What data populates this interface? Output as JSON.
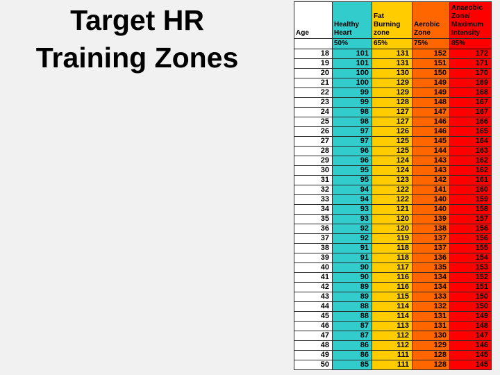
{
  "slide": {
    "title": {
      "line1": "Target HR",
      "line2": "Training Zones"
    },
    "background_color": "#F1F1F2"
  },
  "table": {
    "columns": [
      {
        "key": "age",
        "label": "Age",
        "pct": "",
        "color": "#FFFFFF"
      },
      {
        "key": "healthy",
        "label": "Healthy\nHeart",
        "pct": "50%",
        "color": "#33CCCC"
      },
      {
        "key": "fat",
        "label": "Fat\nBurning\nzone",
        "pct": "65%",
        "color": "#FFCC00"
      },
      {
        "key": "aerobic",
        "label": "Aerobic\nZone",
        "pct": "75%",
        "color": "#FF6600"
      },
      {
        "key": "anaerobic",
        "label": "Anaeobic\nZone/\nMaximum\nIntensity",
        "pct": "85%",
        "color": "#FF0000"
      }
    ],
    "rows": [
      [
        18,
        101,
        131,
        152,
        172
      ],
      [
        19,
        101,
        131,
        151,
        171
      ],
      [
        20,
        100,
        130,
        150,
        170
      ],
      [
        21,
        100,
        129,
        149,
        169
      ],
      [
        22,
        99,
        129,
        149,
        168
      ],
      [
        23,
        99,
        128,
        148,
        167
      ],
      [
        24,
        98,
        127,
        147,
        167
      ],
      [
        25,
        98,
        127,
        146,
        166
      ],
      [
        26,
        97,
        126,
        146,
        165
      ],
      [
        27,
        97,
        125,
        145,
        164
      ],
      [
        28,
        96,
        125,
        144,
        163
      ],
      [
        29,
        96,
        124,
        143,
        162
      ],
      [
        30,
        95,
        124,
        143,
        162
      ],
      [
        31,
        95,
        123,
        142,
        161
      ],
      [
        32,
        94,
        122,
        141,
        160
      ],
      [
        33,
        94,
        122,
        140,
        159
      ],
      [
        34,
        93,
        121,
        140,
        158
      ],
      [
        35,
        93,
        120,
        139,
        157
      ],
      [
        36,
        92,
        120,
        138,
        156
      ],
      [
        37,
        92,
        119,
        137,
        156
      ],
      [
        38,
        91,
        118,
        137,
        155
      ],
      [
        39,
        91,
        118,
        136,
        154
      ],
      [
        40,
        90,
        117,
        135,
        153
      ],
      [
        41,
        90,
        116,
        134,
        152
      ],
      [
        42,
        89,
        116,
        134,
        151
      ],
      [
        43,
        89,
        115,
        133,
        150
      ],
      [
        44,
        88,
        114,
        132,
        150
      ],
      [
        45,
        88,
        114,
        131,
        149
      ],
      [
        46,
        87,
        113,
        131,
        148
      ],
      [
        47,
        87,
        112,
        130,
        147
      ],
      [
        48,
        86,
        112,
        129,
        146
      ],
      [
        49,
        86,
        111,
        128,
        145
      ],
      [
        50,
        85,
        111,
        128,
        145
      ]
    ]
  },
  "chart_data": {
    "type": "table",
    "title": "Target HR Training Zones",
    "columns": [
      "Age",
      "Healthy Heart 50%",
      "Fat Burning zone 65%",
      "Aerobic Zone 75%",
      "Anaeobic Zone/ Maximum Intensity 85%"
    ],
    "x": [
      18,
      19,
      20,
      21,
      22,
      23,
      24,
      25,
      26,
      27,
      28,
      29,
      30,
      31,
      32,
      33,
      34,
      35,
      36,
      37,
      38,
      39,
      40,
      41,
      42,
      43,
      44,
      45,
      46,
      47,
      48,
      49,
      50
    ],
    "series": [
      {
        "name": "Healthy Heart (50%)",
        "values": [
          101,
          101,
          100,
          100,
          99,
          99,
          98,
          98,
          97,
          97,
          96,
          96,
          95,
          95,
          94,
          94,
          93,
          93,
          92,
          92,
          91,
          91,
          90,
          90,
          89,
          89,
          88,
          88,
          87,
          87,
          86,
          86,
          85
        ]
      },
      {
        "name": "Fat Burning zone (65%)",
        "values": [
          131,
          131,
          130,
          129,
          129,
          128,
          127,
          127,
          126,
          125,
          125,
          124,
          124,
          123,
          122,
          122,
          121,
          120,
          120,
          119,
          118,
          118,
          117,
          116,
          116,
          115,
          114,
          114,
          113,
          112,
          112,
          111,
          111
        ]
      },
      {
        "name": "Aerobic Zone (75%)",
        "values": [
          152,
          151,
          150,
          149,
          149,
          148,
          147,
          146,
          146,
          145,
          144,
          143,
          143,
          142,
          141,
          140,
          140,
          139,
          138,
          137,
          137,
          136,
          135,
          134,
          134,
          133,
          132,
          131,
          131,
          130,
          129,
          128,
          128
        ]
      },
      {
        "name": "Anaeobic Zone/Maximum Intensity (85%)",
        "values": [
          172,
          171,
          170,
          169,
          168,
          167,
          167,
          166,
          165,
          164,
          163,
          162,
          162,
          161,
          160,
          159,
          158,
          157,
          156,
          156,
          155,
          154,
          153,
          152,
          151,
          150,
          150,
          149,
          148,
          147,
          146,
          145,
          145
        ]
      }
    ]
  }
}
